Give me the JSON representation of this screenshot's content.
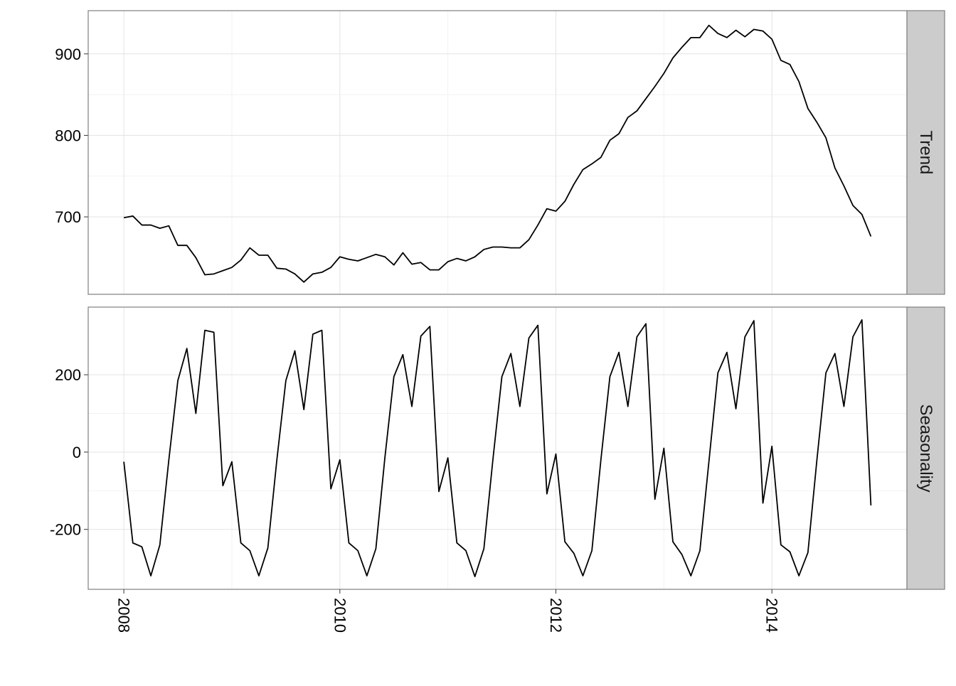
{
  "chart_data": {
    "type": "line",
    "x_ticks": [
      2008,
      2010,
      2012,
      2014
    ],
    "x_start": 2008.0,
    "x_step": 0.08333333,
    "xlim": [
      2007.67,
      2015.25
    ],
    "panels": [
      {
        "label": "Trend",
        "ylim": [
          605,
          953
        ],
        "y_ticks": [
          700,
          800,
          900
        ],
        "values": [
          699,
          701,
          690,
          690,
          686,
          689,
          665,
          665,
          650,
          629,
          630,
          634,
          638,
          647,
          662,
          653,
          653,
          637,
          636,
          630,
          620,
          630,
          632,
          638,
          651,
          648,
          646,
          650,
          654,
          651,
          641,
          656,
          642,
          644,
          635,
          635,
          645,
          649,
          646,
          651,
          660,
          663,
          663,
          662,
          662,
          672,
          690,
          710,
          707,
          719,
          740,
          758,
          765,
          773,
          794,
          802,
          822,
          830,
          845,
          860,
          876,
          895,
          908,
          920,
          920,
          935,
          925,
          920,
          929,
          921,
          930,
          928,
          918,
          892,
          887,
          866,
          833,
          816,
          797,
          760,
          738,
          714,
          703,
          676
        ]
      },
      {
        "label": "Seasonality",
        "ylim": [
          -355,
          375
        ],
        "y_ticks": [
          -200,
          0,
          200
        ],
        "values": [
          -25,
          -235,
          -245,
          -320,
          -240,
          -20,
          185,
          268,
          100,
          315,
          310,
          -87,
          -25,
          -235,
          -255,
          -320,
          -248,
          -20,
          185,
          262,
          110,
          305,
          315,
          -95,
          -20,
          -235,
          -255,
          -320,
          -250,
          -15,
          195,
          252,
          118,
          300,
          325,
          -102,
          -15,
          -235,
          -255,
          -322,
          -250,
          -20,
          195,
          255,
          118,
          295,
          328,
          -108,
          -5,
          -232,
          -262,
          -320,
          -255,
          -20,
          195,
          258,
          118,
          298,
          332,
          -122,
          10,
          -232,
          -265,
          -320,
          -255,
          -25,
          205,
          258,
          112,
          298,
          340,
          -132,
          15,
          -240,
          -258,
          -320,
          -260,
          -20,
          205,
          255,
          118,
          298,
          342,
          -138
        ]
      }
    ]
  }
}
